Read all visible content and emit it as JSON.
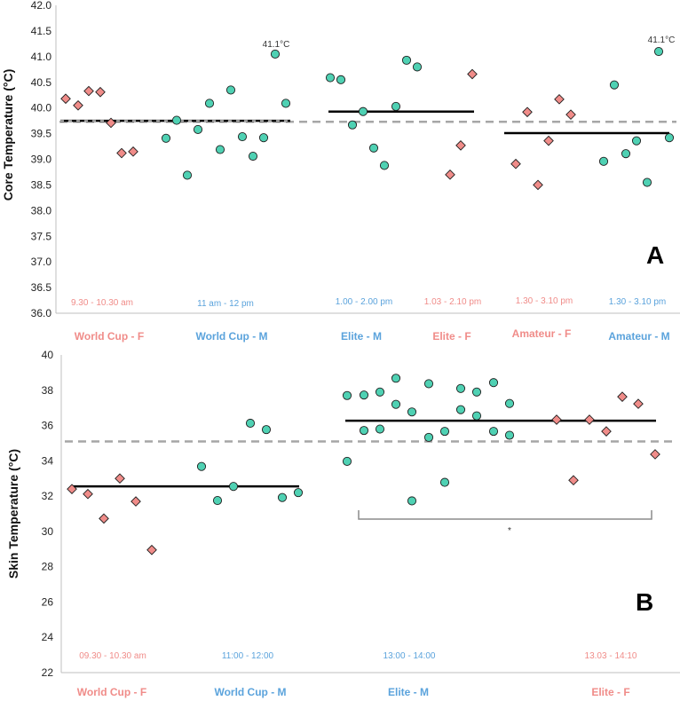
{
  "colors": {
    "female": "#f08c89",
    "male": "#4fd1b3",
    "female_text": "#f08c89",
    "male_text": "#5ba3dc",
    "outline": "#1f1f1f",
    "mean": "#000000",
    "overall": "#a6a6a6",
    "bracket": "#8c8c8c"
  },
  "chart_data": [
    {
      "id": "A",
      "type": "scatter",
      "panel_label": "A",
      "ylabel": "Core Temperature (°C)",
      "ylim": [
        36.0,
        42.0
      ],
      "ytick_step": 0.5,
      "yticks": [
        "36.0",
        "36.5",
        "37.0",
        "37.5",
        "38.0",
        "38.5",
        "39.0",
        "39.5",
        "40.0",
        "40.5",
        "41.0",
        "41.5",
        "42.0"
      ],
      "overall_mean": 39.73,
      "groups": [
        {
          "name": "World Cup - F",
          "sex": "female",
          "time": "9.30 - 10.30 am",
          "mean": 39.75,
          "values": [
            40.18,
            40.05,
            40.33,
            40.31,
            39.71,
            39.12,
            39.15
          ]
        },
        {
          "name": "World Cup - M",
          "sex": "male",
          "time": "11 am - 12 pm",
          "mean": 39.75,
          "values": [
            39.41,
            39.76,
            38.69,
            39.58,
            40.09,
            39.19,
            40.35,
            39.44,
            39.06,
            41.05,
            39.42,
            40.09
          ]
        },
        {
          "name": "Elite - M",
          "sex": "male",
          "time": "1.00 - 2.00 pm",
          "mean": 39.93,
          "values": [
            40.59,
            40.55,
            39.67,
            39.93,
            39.22,
            38.88,
            40.03,
            40.93,
            40.8
          ]
        },
        {
          "name": "Elite - F",
          "sex": "female",
          "time": "1.03 - 2.10 pm",
          "mean": 39.93,
          "values": [
            38.7,
            39.27,
            40.66
          ]
        },
        {
          "name": "Amateur - F",
          "sex": "female",
          "time": "1.30 - 3.10 pm",
          "mean": 39.51,
          "values": [
            38.91,
            39.92,
            38.5,
            39.36,
            40.17,
            39.87
          ]
        },
        {
          "name": "Amateur - M",
          "sex": "male",
          "time": "1.30 - 3.10 pm",
          "mean": 39.51,
          "values": [
            38.96,
            40.45,
            39.11,
            39.36,
            38.55,
            41.1,
            39.42
          ]
        }
      ],
      "annotations": [
        "41.1°C",
        "41.1°C"
      ]
    },
    {
      "id": "B",
      "type": "scatter",
      "panel_label": "B",
      "ylabel": "Skin Temperature (°C)",
      "ylim": [
        22,
        40
      ],
      "ytick_step": 2,
      "yticks": [
        "22",
        "24",
        "26",
        "28",
        "30",
        "32",
        "34",
        "36",
        "38",
        "40"
      ],
      "overall_mean": 35.1,
      "groups": [
        {
          "name": "World Cup - F",
          "sex": "female",
          "time": "09.30 - 10.30 am",
          "mean": 32.55,
          "values": [
            32.4,
            32.12,
            30.73,
            33.0,
            31.7,
            28.95
          ]
        },
        {
          "name": "World Cup - M",
          "sex": "male",
          "time": "11:00 - 12:00",
          "mean": 32.55,
          "values": [
            33.68,
            31.75,
            32.55,
            36.13,
            35.77,
            31.92,
            32.2
          ]
        },
        {
          "name": "Elite - M",
          "sex": "male",
          "time": "13:00 - 14:00",
          "mean": 36.27,
          "values": [
            33.97,
            37.7,
            35.72,
            37.73,
            35.8,
            37.9,
            31.73,
            37.2,
            38.68,
            36.77,
            35.33,
            38.37,
            32.78,
            35.67,
            38.1,
            36.9,
            37.9,
            36.55,
            35.67,
            38.43,
            35.45,
            37.25
          ]
        },
        {
          "name": "Elite - F",
          "sex": "female",
          "time": "13.03 - 14:10",
          "mean": 36.27,
          "values": [
            36.33,
            32.9,
            36.33,
            35.67,
            37.63,
            37.23,
            34.37
          ]
        }
      ],
      "significance": "*"
    }
  ]
}
